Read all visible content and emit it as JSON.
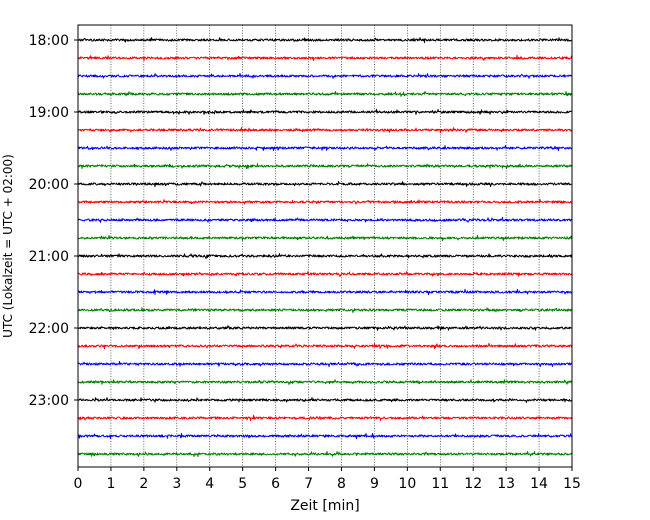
{
  "chart_data": {
    "type": "line",
    "title": "",
    "xlabel": "Zeit  [min]",
    "ylabel": "UTC (Lokalzeit = UTC + 02:00)",
    "xlim": [
      0,
      15
    ],
    "x_ticks": [
      0,
      1,
      2,
      3,
      4,
      5,
      6,
      7,
      8,
      9,
      10,
      11,
      12,
      13,
      14,
      15
    ],
    "x_tick_labels": [
      "0",
      "1",
      "2",
      "3",
      "4",
      "5",
      "6",
      "7",
      "8",
      "9",
      "10",
      "11",
      "12",
      "13",
      "14",
      "15"
    ],
    "y_tick_labels": [
      "18:00",
      "19:00",
      "20:00",
      "21:00",
      "22:00",
      "23:00"
    ],
    "grid": "vertical dotted",
    "row_minutes": 15,
    "start_time": "18:00",
    "rows": 24,
    "trace_colors": [
      "#000000",
      "#ff0000",
      "#0000ff",
      "#008000"
    ],
    "series": [
      {
        "start": "18:00",
        "color": "#000000",
        "level": 0
      },
      {
        "start": "18:15",
        "color": "#ff0000",
        "level": 0
      },
      {
        "start": "18:30",
        "color": "#0000ff",
        "level": 0
      },
      {
        "start": "18:45",
        "color": "#008000",
        "level": 0
      },
      {
        "start": "19:00",
        "color": "#000000",
        "level": 0
      },
      {
        "start": "19:15",
        "color": "#ff0000",
        "level": 0
      },
      {
        "start": "19:30",
        "color": "#0000ff",
        "level": 0
      },
      {
        "start": "19:45",
        "color": "#008000",
        "level": 0
      },
      {
        "start": "20:00",
        "color": "#000000",
        "level": 0
      },
      {
        "start": "20:15",
        "color": "#ff0000",
        "level": 0
      },
      {
        "start": "20:30",
        "color": "#0000ff",
        "level": 0
      },
      {
        "start": "20:45",
        "color": "#008000",
        "level": 0
      },
      {
        "start": "21:00",
        "color": "#000000",
        "level": 0
      },
      {
        "start": "21:15",
        "color": "#ff0000",
        "level": 0
      },
      {
        "start": "21:30",
        "color": "#0000ff",
        "level": 0
      },
      {
        "start": "21:45",
        "color": "#008000",
        "level": 0
      },
      {
        "start": "22:00",
        "color": "#000000",
        "level": 0
      },
      {
        "start": "22:15",
        "color": "#ff0000",
        "level": 0
      },
      {
        "start": "22:30",
        "color": "#0000ff",
        "level": 0
      },
      {
        "start": "22:45",
        "color": "#008000",
        "level": 0
      },
      {
        "start": "23:00",
        "color": "#000000",
        "level": 0
      },
      {
        "start": "23:15",
        "color": "#ff0000",
        "level": 0
      },
      {
        "start": "23:30",
        "color": "#0000ff",
        "level": 0
      },
      {
        "start": "23:45",
        "color": "#008000",
        "level": 0
      }
    ]
  }
}
